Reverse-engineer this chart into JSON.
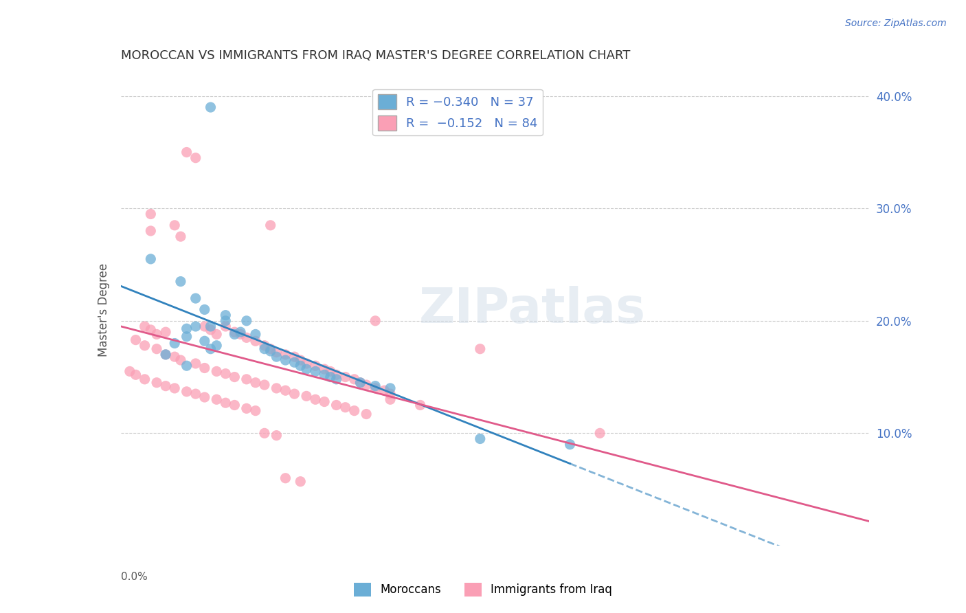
{
  "title": "MOROCCAN VS IMMIGRANTS FROM IRAQ MASTER'S DEGREE CORRELATION CHART",
  "source": "Source: ZipAtlas.com",
  "ylabel": "Master's Degree",
  "xmin": 0.0,
  "xmax": 0.25,
  "ymin": 0.0,
  "ymax": 0.42,
  "yticks": [
    0.1,
    0.2,
    0.3,
    0.4
  ],
  "ytick_labels": [
    "10.0%",
    "20.0%",
    "30.0%",
    "40.0%"
  ],
  "xticks": [
    0.0,
    0.05,
    0.1,
    0.15,
    0.2,
    0.25
  ],
  "blue_R": -0.34,
  "blue_N": 37,
  "pink_R": -0.152,
  "pink_N": 84,
  "blue_color": "#6baed6",
  "pink_color": "#fa9fb5",
  "line_blue": "#3182bd",
  "line_pink": "#e05a8a",
  "watermark": "ZIPatlas",
  "legend_label_blue": "Moroccans",
  "legend_label_pink": "Immigrants from Iraq",
  "blue_dots": [
    [
      0.022,
      0.193
    ],
    [
      0.022,
      0.186
    ],
    [
      0.018,
      0.18
    ],
    [
      0.025,
      0.195
    ],
    [
      0.03,
      0.175
    ],
    [
      0.03,
      0.195
    ],
    [
      0.028,
      0.182
    ],
    [
      0.032,
      0.178
    ],
    [
      0.035,
      0.2
    ],
    [
      0.038,
      0.188
    ],
    [
      0.04,
      0.19
    ],
    [
      0.042,
      0.2
    ],
    [
      0.045,
      0.188
    ],
    [
      0.048,
      0.175
    ],
    [
      0.05,
      0.173
    ],
    [
      0.052,
      0.168
    ],
    [
      0.055,
      0.165
    ],
    [
      0.058,
      0.163
    ],
    [
      0.06,
      0.16
    ],
    [
      0.062,
      0.157
    ],
    [
      0.065,
      0.155
    ],
    [
      0.068,
      0.152
    ],
    [
      0.07,
      0.15
    ],
    [
      0.072,
      0.148
    ],
    [
      0.01,
      0.255
    ],
    [
      0.02,
      0.235
    ],
    [
      0.025,
      0.22
    ],
    [
      0.028,
      0.21
    ],
    [
      0.035,
      0.205
    ],
    [
      0.08,
      0.145
    ],
    [
      0.085,
      0.142
    ],
    [
      0.09,
      0.14
    ],
    [
      0.015,
      0.17
    ],
    [
      0.022,
      0.16
    ],
    [
      0.12,
      0.095
    ],
    [
      0.15,
      0.09
    ],
    [
      0.03,
      0.39
    ]
  ],
  "pink_dots": [
    [
      0.008,
      0.195
    ],
    [
      0.01,
      0.192
    ],
    [
      0.012,
      0.188
    ],
    [
      0.015,
      0.19
    ],
    [
      0.018,
      0.285
    ],
    [
      0.02,
      0.275
    ],
    [
      0.022,
      0.35
    ],
    [
      0.025,
      0.345
    ],
    [
      0.01,
      0.295
    ],
    [
      0.01,
      0.28
    ],
    [
      0.028,
      0.195
    ],
    [
      0.03,
      0.192
    ],
    [
      0.032,
      0.188
    ],
    [
      0.035,
      0.195
    ],
    [
      0.038,
      0.19
    ],
    [
      0.04,
      0.188
    ],
    [
      0.042,
      0.185
    ],
    [
      0.045,
      0.182
    ],
    [
      0.048,
      0.178
    ],
    [
      0.05,
      0.175
    ],
    [
      0.052,
      0.172
    ],
    [
      0.055,
      0.17
    ],
    [
      0.058,
      0.168
    ],
    [
      0.06,
      0.165
    ],
    [
      0.062,
      0.162
    ],
    [
      0.065,
      0.16
    ],
    [
      0.068,
      0.157
    ],
    [
      0.07,
      0.155
    ],
    [
      0.072,
      0.152
    ],
    [
      0.075,
      0.15
    ],
    [
      0.078,
      0.148
    ],
    [
      0.08,
      0.145
    ],
    [
      0.082,
      0.143
    ],
    [
      0.085,
      0.14
    ],
    [
      0.088,
      0.138
    ],
    [
      0.09,
      0.135
    ],
    [
      0.005,
      0.183
    ],
    [
      0.008,
      0.178
    ],
    [
      0.012,
      0.175
    ],
    [
      0.015,
      0.17
    ],
    [
      0.018,
      0.168
    ],
    [
      0.02,
      0.165
    ],
    [
      0.025,
      0.162
    ],
    [
      0.028,
      0.158
    ],
    [
      0.032,
      0.155
    ],
    [
      0.035,
      0.153
    ],
    [
      0.038,
      0.15
    ],
    [
      0.042,
      0.148
    ],
    [
      0.045,
      0.145
    ],
    [
      0.048,
      0.143
    ],
    [
      0.052,
      0.14
    ],
    [
      0.055,
      0.138
    ],
    [
      0.058,
      0.135
    ],
    [
      0.062,
      0.133
    ],
    [
      0.065,
      0.13
    ],
    [
      0.068,
      0.128
    ],
    [
      0.072,
      0.125
    ],
    [
      0.075,
      0.123
    ],
    [
      0.078,
      0.12
    ],
    [
      0.082,
      0.117
    ],
    [
      0.003,
      0.155
    ],
    [
      0.005,
      0.152
    ],
    [
      0.008,
      0.148
    ],
    [
      0.012,
      0.145
    ],
    [
      0.015,
      0.142
    ],
    [
      0.018,
      0.14
    ],
    [
      0.022,
      0.137
    ],
    [
      0.025,
      0.135
    ],
    [
      0.028,
      0.132
    ],
    [
      0.032,
      0.13
    ],
    [
      0.035,
      0.127
    ],
    [
      0.038,
      0.125
    ],
    [
      0.042,
      0.122
    ],
    [
      0.045,
      0.12
    ],
    [
      0.048,
      0.1
    ],
    [
      0.052,
      0.098
    ],
    [
      0.12,
      0.175
    ],
    [
      0.085,
      0.2
    ],
    [
      0.09,
      0.13
    ],
    [
      0.1,
      0.125
    ],
    [
      0.16,
      0.1
    ],
    [
      0.05,
      0.285
    ],
    [
      0.055,
      0.06
    ],
    [
      0.06,
      0.057
    ]
  ]
}
